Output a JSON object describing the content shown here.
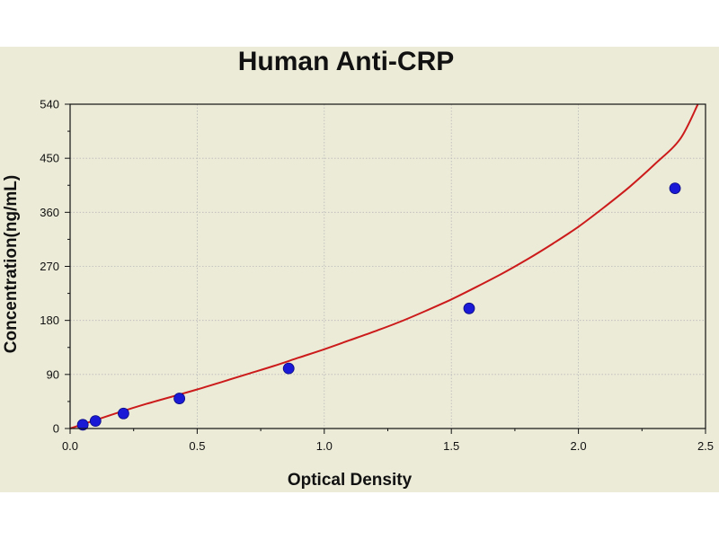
{
  "chart_data": {
    "type": "scatter",
    "title": "Human Anti-CRP",
    "xlabel": "Optical Density",
    "ylabel": "Concentration(ng/mL)",
    "xlim": [
      0,
      2.5
    ],
    "ylim": [
      0,
      540
    ],
    "x_ticks": [
      "0.0",
      "0.5",
      "1.0",
      "1.5",
      "2.0",
      "2.5"
    ],
    "y_ticks": [
      "0",
      "90",
      "180",
      "270",
      "360",
      "450",
      "540"
    ],
    "grid": true,
    "series": [
      {
        "kind": "points",
        "x": [
          0.05,
          0.1,
          0.21,
          0.43,
          0.86,
          1.57,
          2.38
        ],
        "y": [
          6.25,
          12.5,
          25,
          50,
          100,
          200,
          400
        ],
        "color": "#1a1ad6"
      },
      {
        "kind": "fit-curve",
        "x": [
          0.0,
          0.1,
          0.2,
          0.3,
          0.4,
          0.5,
          0.6,
          0.7,
          0.8,
          0.9,
          1.0,
          1.1,
          1.2,
          1.3,
          1.4,
          1.5,
          1.6,
          1.7,
          1.8,
          1.9,
          2.0,
          2.1,
          2.2,
          2.3,
          2.4,
          2.47
        ],
        "y": [
          0,
          14,
          28,
          41,
          53,
          65,
          78,
          91,
          104,
          118,
          132,
          147,
          162,
          178,
          196,
          215,
          236,
          258,
          282,
          308,
          336,
          368,
          402,
          440,
          482,
          540
        ],
        "color": "#cc1b1b"
      }
    ]
  }
}
